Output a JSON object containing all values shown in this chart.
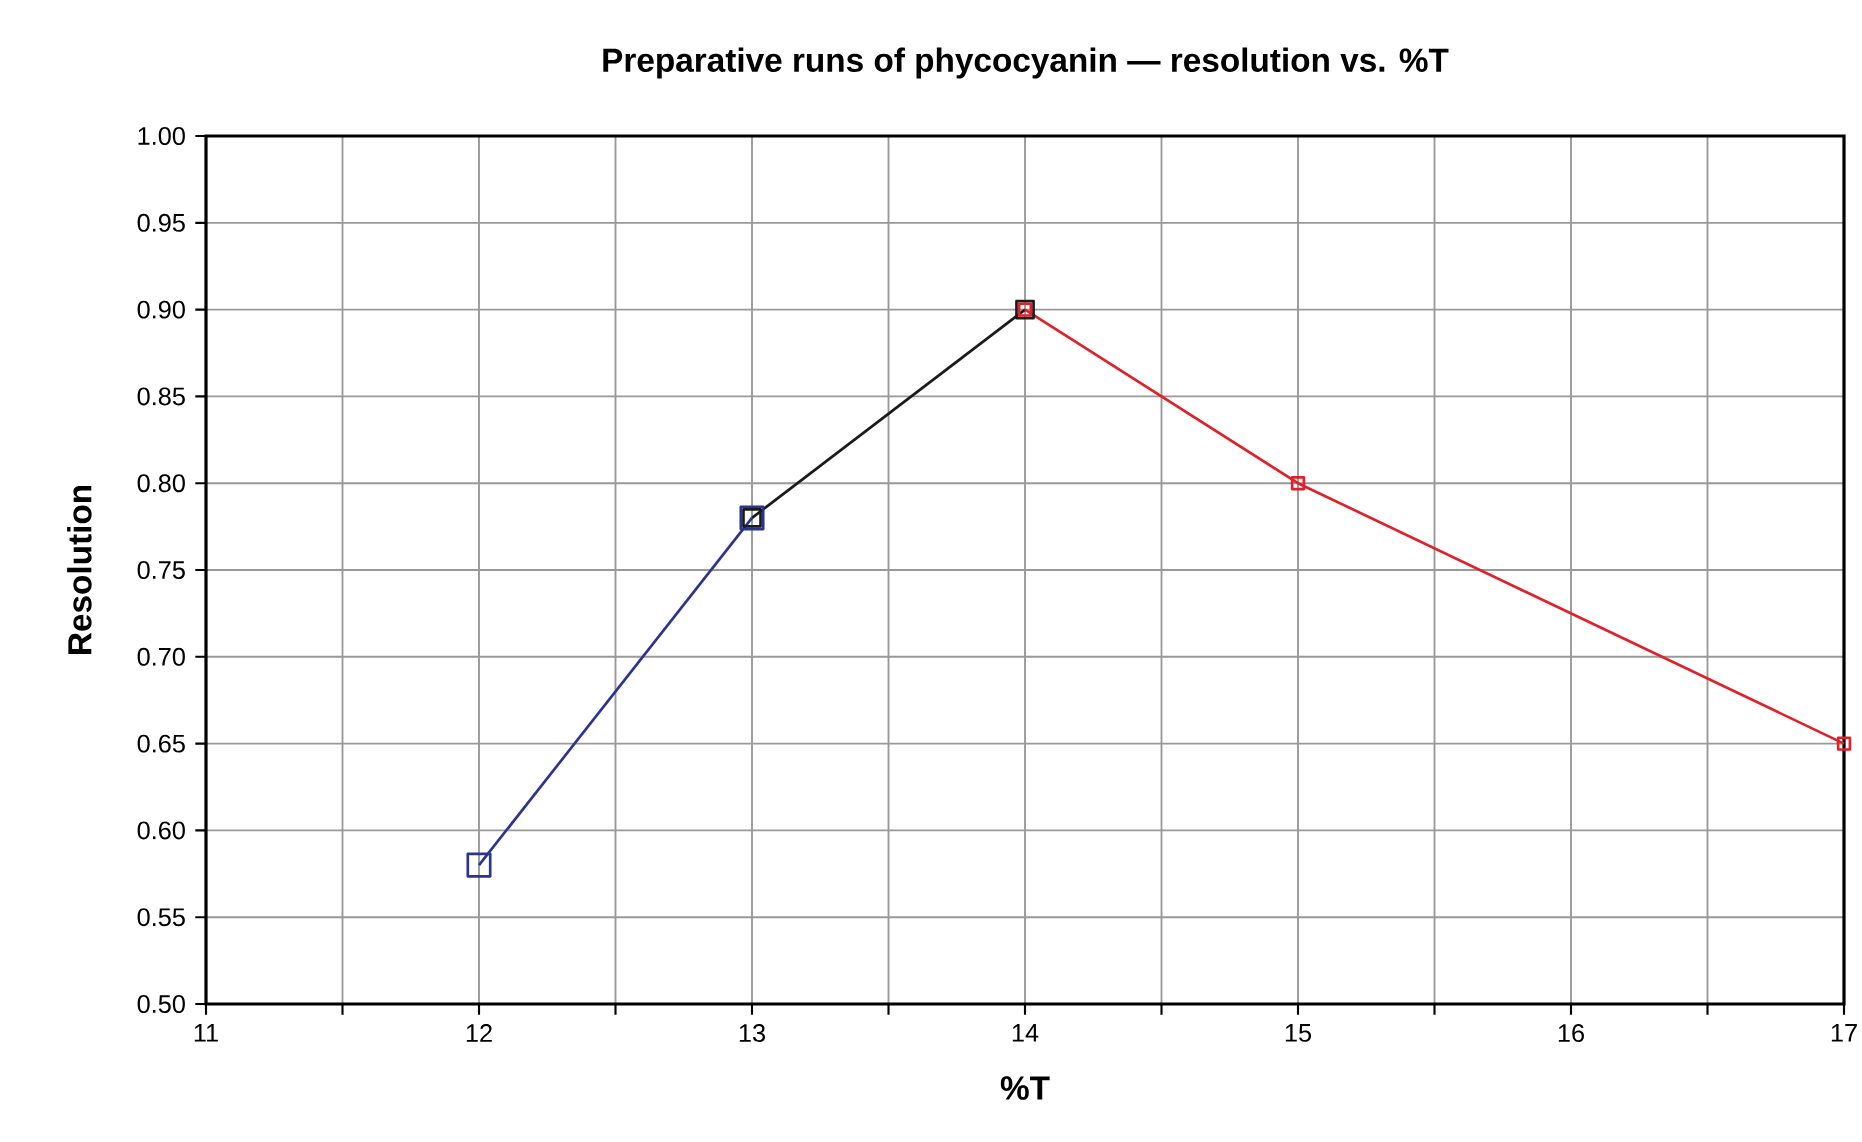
{
  "chart_data": {
    "type": "line",
    "title": "Preparative runs of phycocyanin — resolution vs. %T",
    "xlabel": "%T",
    "ylabel": "Resolution",
    "xlim": [
      11,
      17
    ],
    "ylim": [
      0.5,
      1.0
    ],
    "xticks": [
      11,
      {
        "value": 11.5,
        "label": null
      },
      12,
      {
        "value": 12.5,
        "label": null
      },
      13,
      {
        "value": 13.5,
        "label": null
      },
      14,
      {
        "value": 14.5,
        "label": null
      },
      15,
      {
        "value": 15.5,
        "label": null
      },
      16,
      {
        "value": 16.5,
        "label": null
      },
      17
    ],
    "yticks": [
      {
        "value": 0.5,
        "label": "0.50"
      },
      {
        "value": 0.55,
        "label": "0.55"
      },
      {
        "value": 0.6,
        "label": "0.60"
      },
      {
        "value": 0.65,
        "label": "0.65"
      },
      {
        "value": 0.7,
        "label": "0.70"
      },
      {
        "value": 0.75,
        "label": "0.75"
      },
      {
        "value": 0.8,
        "label": "0.80"
      },
      {
        "value": 0.85,
        "label": "0.85"
      },
      {
        "value": 0.9,
        "label": "0.90"
      },
      {
        "value": 0.95,
        "label": "0.95"
      },
      {
        "value": 1.0,
        "label": "1.00"
      }
    ],
    "grid": true,
    "marker": "square",
    "line_style": "solid",
    "series": [
      {
        "color": "#2b3590",
        "x": [
          12,
          13
        ],
        "values": [
          0.58,
          0.78
        ]
      },
      {
        "color": "#1a1a1a",
        "x": [
          13,
          14
        ],
        "values": [
          0.78,
          0.9
        ]
      },
      {
        "color": "#e0202a",
        "x": [
          14,
          15,
          17
        ],
        "values": [
          0.9,
          0.8,
          0.65
        ]
      }
    ]
  }
}
